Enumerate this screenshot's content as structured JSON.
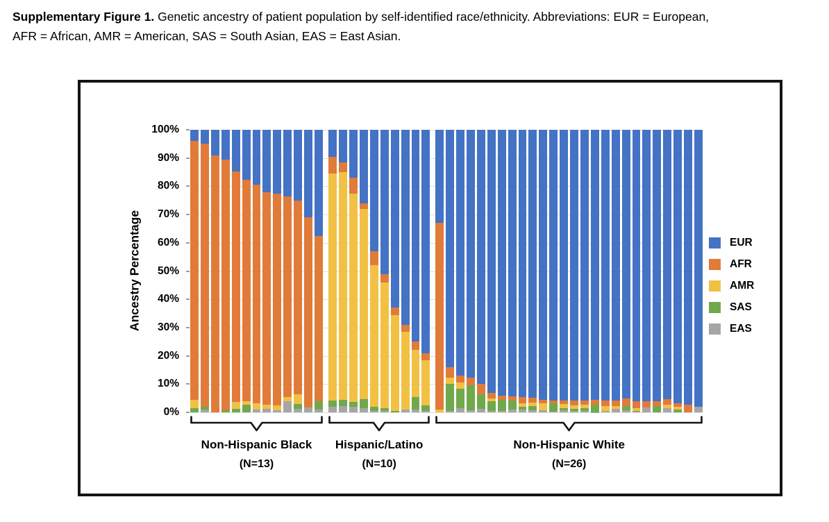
{
  "caption": {
    "bold": "Supplementary Figure 1.",
    "line1_rest": " Genetic ancestry of patient population by self-identified race/ethnicity. Abbreviations: EUR = European,",
    "line2": "AFR = African, AMR = American, SAS = South Asian, EAS = East Asian."
  },
  "chart_data": {
    "type": "bar",
    "stacked": true,
    "ylabel": "Ancestry Percentage",
    "ylim": [
      0,
      100
    ],
    "y_ticks": [
      "0%",
      "10%",
      "20%",
      "30%",
      "40%",
      "50%",
      "60%",
      "70%",
      "80%",
      "90%",
      "100%"
    ],
    "grid": true,
    "legend_position": "right",
    "series_order": [
      "EUR",
      "AFR",
      "AMR",
      "SAS",
      "EAS"
    ],
    "legend": [
      {
        "label": "EUR",
        "color": "#4472C4"
      },
      {
        "label": "AFR",
        "color": "#E07B3A"
      },
      {
        "label": "AMR",
        "color": "#F2C144"
      },
      {
        "label": "SAS",
        "color": "#70A94C"
      },
      {
        "label": "EAS",
        "color": "#A6A6A6"
      }
    ],
    "groups": [
      {
        "label": "Non-Hispanic Black",
        "n_label": "(N=13)",
        "bars": [
          [
            4,
            91.5,
            3,
            1.5,
            0
          ],
          [
            5,
            93,
            0,
            1,
            1
          ],
          [
            9,
            91,
            0,
            0,
            0
          ],
          [
            10.5,
            88.8,
            0,
            0.7,
            0
          ],
          [
            14.7,
            81.6,
            2.4,
            1.3,
            0
          ],
          [
            17.7,
            78.3,
            1.3,
            2.7,
            0
          ],
          [
            19.5,
            77.2,
            2.3,
            0,
            1
          ],
          [
            22,
            75.3,
            1.5,
            0,
            1.2
          ],
          [
            22.5,
            75,
            1.8,
            0,
            0.7
          ],
          [
            23.5,
            71,
            1.5,
            0,
            4
          ],
          [
            25,
            68.7,
            3.3,
            1.8,
            1.2
          ],
          [
            31,
            67.3,
            0,
            0,
            1.7
          ],
          [
            37.5,
            58.5,
            0,
            3,
            1
          ]
        ]
      },
      {
        "label": "Hispanic/Latino",
        "n_label": "(N=10)",
        "bars": [
          [
            9.5,
            6,
            80.4,
            2.1,
            2
          ],
          [
            11.5,
            3.5,
            80.5,
            2.3,
            2.2
          ],
          [
            17,
            5.5,
            73.7,
            1.9,
            1.9
          ],
          [
            26,
            2,
            67.4,
            3,
            1.6
          ],
          [
            43,
            5,
            50.1,
            1.3,
            0.6
          ],
          [
            51,
            3,
            44.4,
            1.2,
            0.4
          ],
          [
            63,
            2.5,
            33.9,
            0.6,
            0
          ],
          [
            69,
            2.5,
            27.4,
            0,
            1.1
          ],
          [
            75,
            3,
            16.6,
            4.3,
            1.1
          ],
          [
            79,
            2.5,
            16,
            1.9,
            0.6
          ]
        ]
      },
      {
        "label": "Non-Hispanic White",
        "n_label": "(N=26)",
        "bars": [
          [
            33,
            66,
            1,
            0,
            0
          ],
          [
            84,
            3.7,
            2.1,
            9.7,
            0.5
          ],
          [
            87,
            2.4,
            2.2,
            6.9,
            1.5
          ],
          [
            87.6,
            2.7,
            0,
            8.9,
            0.8
          ],
          [
            90,
            3.5,
            0,
            5.3,
            1.2
          ],
          [
            93,
            2.1,
            1,
            3.3,
            0.6
          ],
          [
            94,
            1.6,
            0,
            4,
            0.4
          ],
          [
            94.3,
            1.6,
            0,
            3.1,
            1
          ],
          [
            94.7,
            2,
            1.3,
            1,
            1
          ],
          [
            94.9,
            1.6,
            1.2,
            1.6,
            0.7
          ],
          [
            95.5,
            1.2,
            2.5,
            0,
            0.8
          ],
          [
            95.7,
            1,
            0,
            3.1,
            0.2
          ],
          [
            95.9,
            1.2,
            1.4,
            0.8,
            0.7
          ],
          [
            95.9,
            1.6,
            1.2,
            0.8,
            0.5
          ],
          [
            95.7,
            1.7,
            1.1,
            1,
            0.5
          ],
          [
            95.5,
            1.9,
            0,
            2.5,
            0.1
          ],
          [
            95.9,
            1.8,
            1.9,
            0,
            0.4
          ],
          [
            95.7,
            2,
            1.1,
            0,
            1.2
          ],
          [
            95.2,
            2.5,
            0,
            1.6,
            0.7
          ],
          [
            96,
            2.5,
            1,
            0.3,
            0.2
          ],
          [
            96,
            2.2,
            0,
            0,
            1.8
          ],
          [
            96,
            1.8,
            0,
            2.2,
            0
          ],
          [
            95.3,
            2.1,
            1.1,
            0,
            1.5
          ],
          [
            96.9,
            1.1,
            1.1,
            0.9,
            0
          ],
          [
            97.4,
            2.6,
            0,
            0,
            0
          ],
          [
            98,
            0,
            0,
            0,
            2
          ]
        ]
      }
    ]
  }
}
